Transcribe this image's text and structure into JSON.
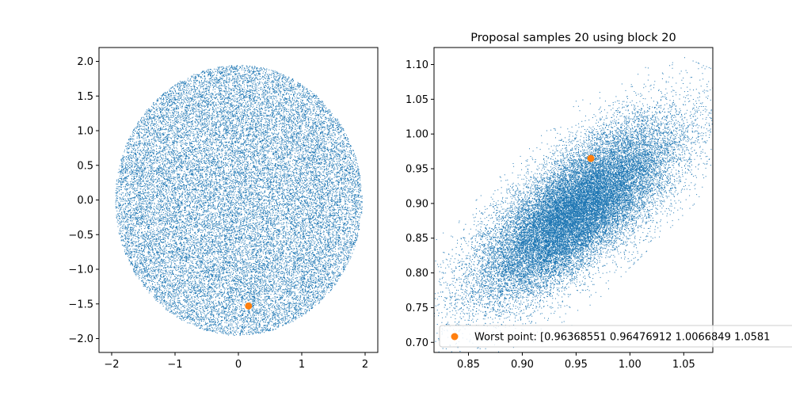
{
  "chart_data": [
    {
      "type": "scatter",
      "title": "",
      "xlabel": "",
      "ylabel": "",
      "xlim": [
        -2.2,
        2.2
      ],
      "ylim": [
        -2.2,
        2.2
      ],
      "xticks": [
        -2,
        -1,
        0,
        1,
        2
      ],
      "xtick_labels": [
        "−2",
        "−1",
        "0",
        "1",
        "2"
      ],
      "yticks": [
        -2.0,
        -1.5,
        -1.0,
        -0.5,
        0.0,
        0.5,
        1.0,
        1.5,
        2.0
      ],
      "ytick_labels": [
        "−2.0",
        "−1.5",
        "−1.0",
        "−0.5",
        "0.0",
        "0.5",
        "1.0",
        "1.5",
        "2.0"
      ],
      "grid": false,
      "series": [
        {
          "kind": "sample-cloud",
          "distribution": "uniform-disk",
          "center": [
            0.0,
            0.0
          ],
          "radius": 1.95,
          "color": "#1f77b4"
        },
        {
          "kind": "highlight-point",
          "points": [
            {
              "x": 0.16,
              "y": -1.53
            }
          ],
          "color": "#ff7f0e"
        }
      ]
    },
    {
      "type": "scatter",
      "title": "Proposal samples 20 using block 20",
      "xlabel": "",
      "ylabel": "",
      "xlim": [
        0.818,
        1.077
      ],
      "ylim": [
        0.6855,
        1.1245
      ],
      "xticks": [
        0.85,
        0.9,
        0.95,
        1.0,
        1.05
      ],
      "xtick_labels": [
        "0.85",
        "0.90",
        "0.95",
        "1.00",
        "1.05"
      ],
      "yticks": [
        0.7,
        0.75,
        0.8,
        0.85,
        0.9,
        0.95,
        1.0,
        1.05,
        1.1
      ],
      "ytick_labels": [
        "0.70",
        "0.75",
        "0.80",
        "0.85",
        "0.90",
        "0.95",
        "1.00",
        "1.05",
        "1.10"
      ],
      "grid": false,
      "legend_placement": "lower-left",
      "series": [
        {
          "kind": "sample-cloud",
          "distribution": "correlated-ellipse",
          "center": [
            0.95,
            0.89
          ],
          "principal_axis": [
            0.545,
            0.838
          ],
          "semi_major": 0.225,
          "semi_minor": 0.027,
          "color": "#1f77b4"
        },
        {
          "kind": "highlight-point",
          "name": "Worst point: [0.96368551 0.96476912 1.0066849  1.0581",
          "points": [
            {
              "x": 0.9637,
              "y": 0.9648
            }
          ],
          "color": "#ff7f0e"
        }
      ]
    }
  ]
}
